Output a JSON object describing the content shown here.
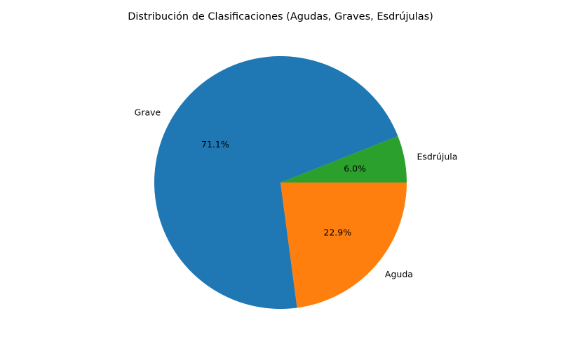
{
  "chart_data": {
    "type": "pie",
    "title": "Distribución de Clasificaciones (Agudas, Graves, Esdrújulas)",
    "start_angle_deg": 0,
    "direction": "counterclockwise",
    "slices": [
      {
        "label": "Esdrújula",
        "value": 6.0,
        "pct_label": "6.0%",
        "color": "#2ca02c"
      },
      {
        "label": "Grave",
        "value": 71.1,
        "pct_label": "71.1%",
        "color": "#1f77b4"
      },
      {
        "label": "Aguda",
        "value": 22.9,
        "pct_label": "22.9%",
        "color": "#ff7f0e"
      }
    ]
  }
}
